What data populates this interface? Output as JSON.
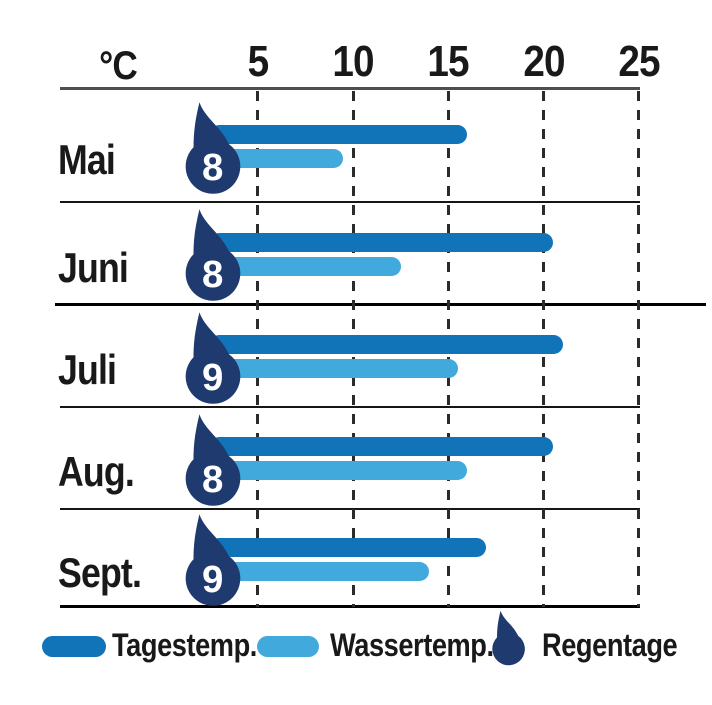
{
  "axis": {
    "unit": "°C",
    "ticks": [
      "5",
      "10",
      "15",
      "20",
      "25"
    ]
  },
  "rows": [
    {
      "month": "Mai",
      "rain_days": "8",
      "day_temp": 16,
      "water_temp": 9.5
    },
    {
      "month": "Juni",
      "rain_days": "8",
      "day_temp": 20.5,
      "water_temp": 12.5
    },
    {
      "month": "Juli",
      "rain_days": "9",
      "day_temp": 21,
      "water_temp": 15.5
    },
    {
      "month": "Aug.",
      "rain_days": "8",
      "day_temp": 20.5,
      "water_temp": 16
    },
    {
      "month": "Sept.",
      "rain_days": "9",
      "day_temp": 17,
      "water_temp": 14
    }
  ],
  "legend": {
    "items": [
      {
        "label": "Tagestemp."
      },
      {
        "label": "Wassertemp."
      },
      {
        "label": "Regentage"
      }
    ]
  },
  "colors": {
    "day_temp": "#1173b8",
    "water_temp": "#41a9dc",
    "rain_drop": "#1e3a6e",
    "text": "#191919"
  },
  "chart_data": {
    "type": "bar",
    "orientation": "horizontal",
    "categories": [
      "Mai",
      "Juni",
      "Juli",
      "Aug.",
      "Sept."
    ],
    "series": [
      {
        "name": "Tagestemp.",
        "values": [
          16,
          20.5,
          21,
          20.5,
          17
        ]
      },
      {
        "name": "Wassertemp.",
        "values": [
          9.5,
          12.5,
          15.5,
          16,
          14
        ]
      },
      {
        "name": "Regentage",
        "values": [
          8,
          8,
          9,
          8,
          9
        ]
      }
    ],
    "xlabel": "°C",
    "ylabel": "",
    "xlim": [
      0,
      25
    ],
    "xticks": [
      5,
      10,
      15,
      20,
      25
    ],
    "grid": true,
    "gridstyle": "dashed-vertical",
    "legend_position": "bottom"
  }
}
